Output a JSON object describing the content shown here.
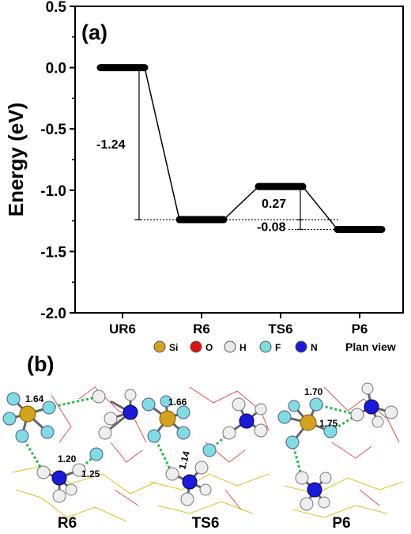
{
  "panel_a": {
    "label": "(a)"
  },
  "panel_b": {
    "label": "(b)",
    "plan_view_label": "Plan view",
    "legend": [
      {
        "label": "Si",
        "color": "#d4a21c"
      },
      {
        "label": "O",
        "color": "#e01010"
      },
      {
        "label": "H",
        "color": "#e8e8e8"
      },
      {
        "label": "F",
        "color": "#7fdde0"
      },
      {
        "label": "N",
        "color": "#1a1ad8"
      }
    ],
    "structures": [
      {
        "name": "R6",
        "distances": [
          "1.64",
          "1.20",
          "1.25"
        ]
      },
      {
        "name": "TS6",
        "distances": [
          "1.66",
          "1.14"
        ]
      },
      {
        "name": "P6",
        "distances": [
          "1.70",
          "1.75"
        ]
      }
    ]
  },
  "chart_data": {
    "type": "energy_level_diagram",
    "ylabel": "Energy (eV)",
    "ylim": [
      -2.0,
      0.5
    ],
    "yticks": [
      "0.5",
      "0.0",
      "-0.5",
      "-1.0",
      "-1.5",
      "-2.0"
    ],
    "ytick_values": [
      0.5,
      0.0,
      -0.5,
      -1.0,
      -1.5,
      -2.0
    ],
    "categories": [
      "UR6",
      "R6",
      "TS6",
      "P6"
    ],
    "values": [
      0.0,
      -1.24,
      -0.97,
      -1.32
    ],
    "annotations": [
      {
        "text": "-1.24",
        "from": 0.0,
        "to": -1.24
      },
      {
        "text": "0.27",
        "from": -0.97,
        "to": -1.24
      },
      {
        "text": "-0.08",
        "from": -1.24,
        "to": -1.32
      }
    ],
    "grid": false,
    "colors": {
      "level": "#000000",
      "axis": "#000000"
    }
  }
}
